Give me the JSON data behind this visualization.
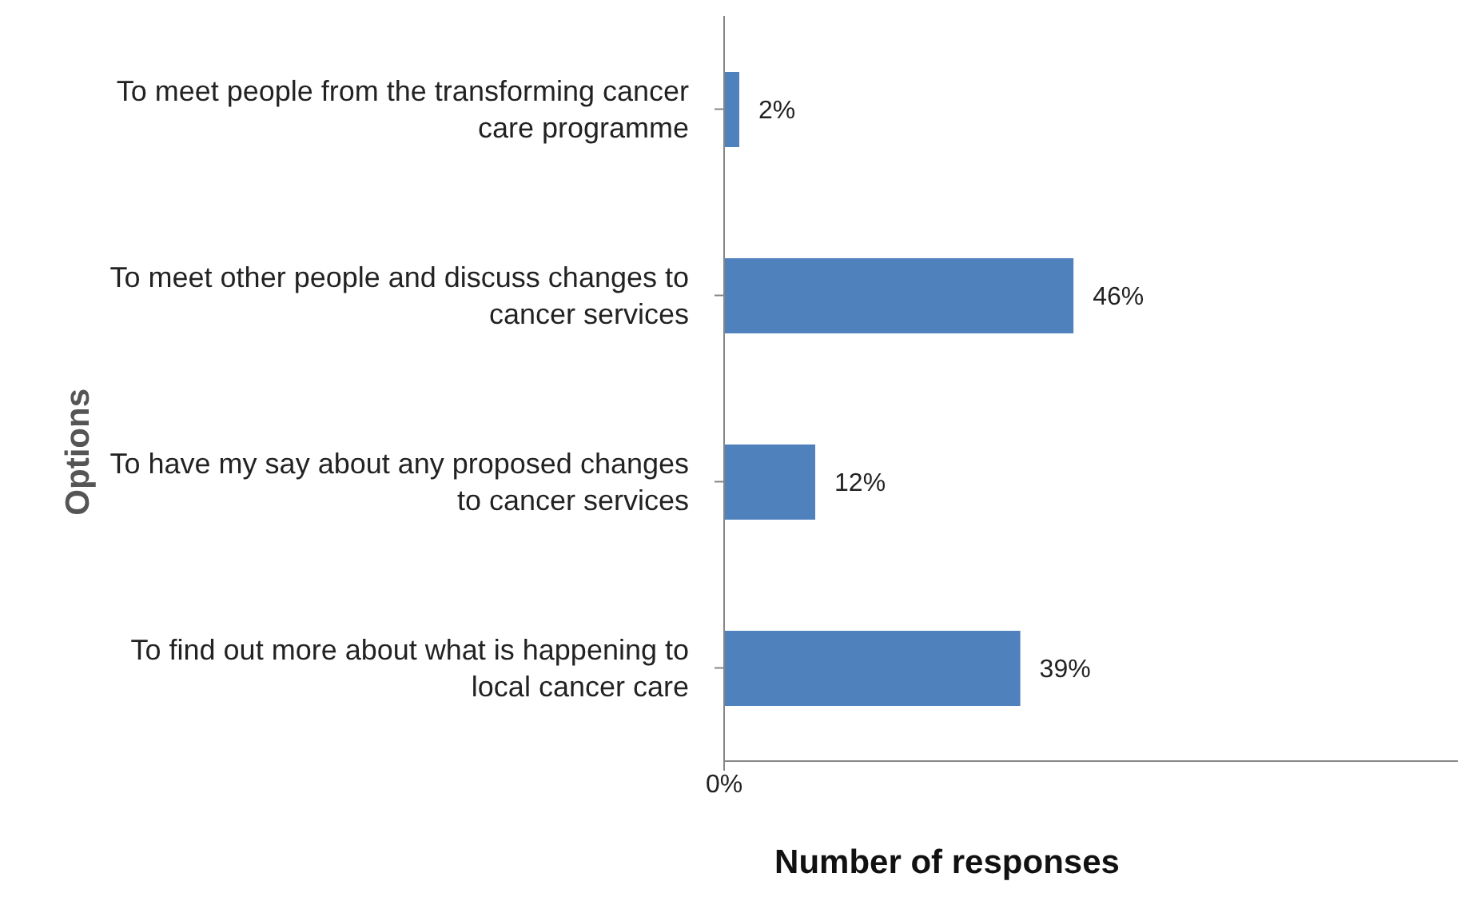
{
  "chart_data": {
    "type": "bar",
    "orientation": "horizontal",
    "xlabel": "Number of responses",
    "ylabel": "Options",
    "categories": [
      "To meet people from the transforming cancer care programme",
      "To meet other people and discuss changes to cancer services",
      "To have my say about any proposed changes to cancer services",
      "To find out more about what is happening to local cancer care"
    ],
    "values": [
      2,
      46,
      12,
      39
    ],
    "value_labels": [
      "2%",
      "46%",
      "12%",
      "39%"
    ],
    "color": "#4f81bd",
    "annotations": [
      "0%"
    ]
  }
}
